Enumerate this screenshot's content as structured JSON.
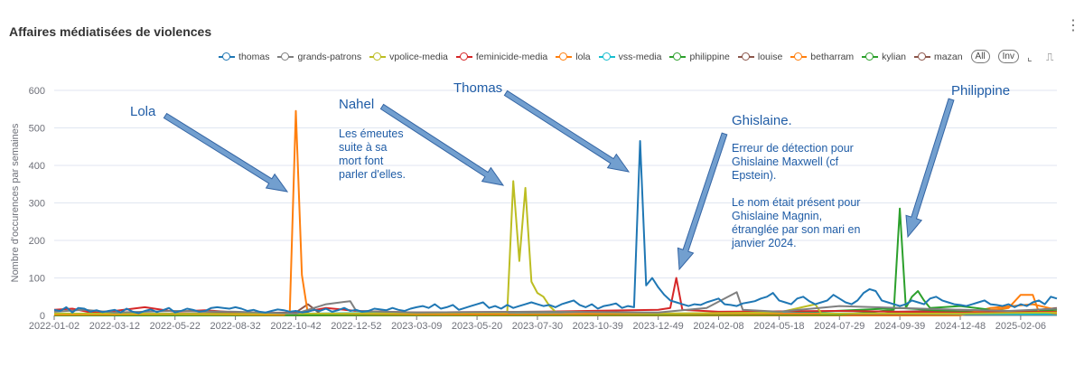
{
  "title": "Affaires médiatisées de violences",
  "legend_buttons": {
    "all": "All",
    "inv": "Inv"
  },
  "chart_data": {
    "type": "line",
    "ylabel": "Nombre d'occurences par semaines",
    "ylim": [
      0,
      600
    ],
    "yticks": [
      0,
      100,
      200,
      300,
      400,
      500,
      600
    ],
    "grid": true,
    "legend_placement": "top-right",
    "x_unit": "week index since 2022-01-02",
    "xticks": [
      {
        "i": 0,
        "label": "2022-01-02"
      },
      {
        "i": 10,
        "label": "2022-03-12"
      },
      {
        "i": 20,
        "label": "2022-05-22"
      },
      {
        "i": 30,
        "label": "2022-08-32"
      },
      {
        "i": 40,
        "label": "2022-10-42"
      },
      {
        "i": 50,
        "label": "2022-12-52"
      },
      {
        "i": 60,
        "label": "2023-03-09"
      },
      {
        "i": 70,
        "label": "2023-05-20"
      },
      {
        "i": 80,
        "label": "2023-07-30"
      },
      {
        "i": 90,
        "label": "2023-10-39"
      },
      {
        "i": 100,
        "label": "2023-12-49"
      },
      {
        "i": 110,
        "label": "2024-02-08"
      },
      {
        "i": 120,
        "label": "2024-05-18"
      },
      {
        "i": 130,
        "label": "2024-07-29"
      },
      {
        "i": 140,
        "label": "2024-09-39"
      },
      {
        "i": 150,
        "label": "2024-12-48"
      },
      {
        "i": 160,
        "label": "2025-02-06"
      }
    ],
    "xmax": 166,
    "series": [
      {
        "name": "thomas",
        "color": "#1f77b4",
        "values": [
          15,
          12,
          22,
          8,
          20,
          18,
          10,
          14,
          9,
          12,
          15,
          8,
          18,
          10,
          6,
          12,
          16,
          9,
          14,
          20,
          8,
          12,
          18,
          15,
          10,
          12,
          20,
          22,
          20,
          18,
          22,
          18,
          12,
          15,
          10,
          8,
          12,
          16,
          14,
          10,
          12,
          8,
          10,
          15,
          12,
          18,
          10,
          14,
          20,
          12,
          15,
          10,
          12,
          18,
          16,
          14,
          20,
          15,
          12,
          18,
          22,
          25,
          20,
          30,
          18,
          22,
          28,
          15,
          20,
          25,
          30,
          35,
          20,
          25,
          18,
          28,
          20,
          25,
          30,
          35,
          30,
          25,
          28,
          22,
          30,
          35,
          40,
          28,
          22,
          30,
          18,
          25,
          28,
          32,
          20,
          25,
          22,
          465,
          80,
          100,
          75,
          55,
          40,
          35,
          30,
          25,
          30,
          28,
          35,
          40,
          45,
          30,
          28,
          25,
          32,
          35,
          38,
          45,
          50,
          60,
          40,
          35,
          30,
          45,
          50,
          38,
          30,
          35,
          40,
          55,
          45,
          35,
          30,
          40,
          60,
          70,
          65,
          40,
          35,
          30,
          25,
          30,
          40,
          35,
          30,
          45,
          50,
          40,
          35,
          30,
          28,
          25,
          30,
          35,
          40,
          30,
          28,
          25,
          30,
          22,
          30,
          25,
          35,
          40,
          30,
          50,
          45
        ]
      },
      {
        "name": "grands-patrons",
        "color": "#7f7f7f",
        "points": [
          [
            0,
            10
          ],
          [
            5,
            15
          ],
          [
            10,
            8
          ],
          [
            20,
            12
          ],
          [
            30,
            10
          ],
          [
            40,
            5
          ],
          [
            45,
            30
          ],
          [
            49,
            38
          ],
          [
            50,
            12
          ],
          [
            60,
            8
          ],
          [
            80,
            10
          ],
          [
            100,
            8
          ],
          [
            108,
            20
          ],
          [
            113,
            62
          ],
          [
            114,
            15
          ],
          [
            120,
            10
          ],
          [
            130,
            25
          ],
          [
            140,
            20
          ],
          [
            150,
            15
          ],
          [
            158,
            12
          ],
          [
            166,
            18
          ]
        ]
      },
      {
        "name": "vpolice-media",
        "color": "#bcbd22",
        "points": [
          [
            0,
            5
          ],
          [
            30,
            4
          ],
          [
            60,
            6
          ],
          [
            75,
            8
          ],
          [
            76,
            358
          ],
          [
            77,
            145
          ],
          [
            78,
            340
          ],
          [
            79,
            90
          ],
          [
            80,
            60
          ],
          [
            81,
            50
          ],
          [
            82,
            25
          ],
          [
            83,
            10
          ],
          [
            100,
            5
          ],
          [
            120,
            8
          ],
          [
            126,
            30
          ],
          [
            127,
            5
          ],
          [
            150,
            5
          ],
          [
            166,
            8
          ]
        ]
      },
      {
        "name": "feminicide-media",
        "color": "#d62728",
        "points": [
          [
            0,
            15
          ],
          [
            3,
            18
          ],
          [
            6,
            8
          ],
          [
            10,
            12
          ],
          [
            15,
            22
          ],
          [
            20,
            10
          ],
          [
            25,
            14
          ],
          [
            30,
            8
          ],
          [
            40,
            5
          ],
          [
            45,
            20
          ],
          [
            50,
            12
          ],
          [
            60,
            8
          ],
          [
            80,
            10
          ],
          [
            100,
            15
          ],
          [
            102,
            20
          ],
          [
            103,
            100
          ],
          [
            104,
            15
          ],
          [
            110,
            10
          ],
          [
            130,
            12
          ],
          [
            150,
            8
          ],
          [
            166,
            10
          ]
        ]
      },
      {
        "name": "lola",
        "color": "#ff7f0e",
        "points": [
          [
            0,
            2
          ],
          [
            20,
            3
          ],
          [
            38,
            2
          ],
          [
            39,
            10
          ],
          [
            40,
            545
          ],
          [
            41,
            108
          ],
          [
            42,
            5
          ],
          [
            60,
            3
          ],
          [
            100,
            4
          ],
          [
            150,
            5
          ],
          [
            158,
            20
          ],
          [
            160,
            55
          ],
          [
            162,
            55
          ],
          [
            163,
            10
          ],
          [
            166,
            5
          ]
        ]
      },
      {
        "name": "vss-media",
        "color": "#17becf",
        "points": [
          [
            0,
            5
          ],
          [
            30,
            3
          ],
          [
            60,
            8
          ],
          [
            90,
            4
          ],
          [
            120,
            6
          ],
          [
            166,
            3
          ]
        ]
      },
      {
        "name": "philippine",
        "color": "#2ca02c",
        "points": [
          [
            0,
            0
          ],
          [
            130,
            2
          ],
          [
            136,
            10
          ],
          [
            139,
            15
          ],
          [
            140,
            285
          ],
          [
            141,
            20
          ],
          [
            142,
            50
          ],
          [
            143,
            65
          ],
          [
            144,
            40
          ],
          [
            145,
            20
          ],
          [
            150,
            25
          ],
          [
            155,
            15
          ],
          [
            160,
            10
          ],
          [
            166,
            15
          ]
        ]
      },
      {
        "name": "louise",
        "color": "#8c564b",
        "points": [
          [
            0,
            2
          ],
          [
            40,
            8
          ],
          [
            42,
            30
          ],
          [
            44,
            5
          ],
          [
            80,
            3
          ],
          [
            120,
            2
          ],
          [
            166,
            4
          ]
        ]
      },
      {
        "name": "betharram",
        "color": "#ff7f0e",
        "points": [
          [
            0,
            0
          ],
          [
            150,
            0
          ],
          [
            155,
            20
          ],
          [
            162,
            30
          ],
          [
            166,
            15
          ]
        ]
      },
      {
        "name": "kylian",
        "color": "#2ca02c",
        "points": [
          [
            0,
            0
          ],
          [
            100,
            0
          ],
          [
            120,
            5
          ],
          [
            140,
            20
          ],
          [
            150,
            10
          ],
          [
            166,
            8
          ]
        ]
      },
      {
        "name": "mazan",
        "color": "#8c564b",
        "points": [
          [
            0,
            0
          ],
          [
            135,
            0
          ],
          [
            140,
            10
          ],
          [
            150,
            15
          ],
          [
            160,
            10
          ],
          [
            166,
            20
          ]
        ]
      }
    ],
    "annotations": [
      {
        "title": "Lola",
        "lines": []
      },
      {
        "title": "Nahel",
        "lines": [
          "Les émeutes",
          "suite à sa",
          "mort font",
          "parler d'elles."
        ]
      },
      {
        "title": "Thomas",
        "lines": []
      },
      {
        "title": "Ghislaine.",
        "lines": [
          "Erreur de détection pour",
          "Ghislaine Maxwell (cf",
          "Epstein).",
          "",
          "Le nom était présent pour",
          "Ghislaine Magnin,",
          "étranglée par son mari en",
          "janvier 2024."
        ]
      },
      {
        "title": "Philippine",
        "lines": []
      }
    ]
  }
}
